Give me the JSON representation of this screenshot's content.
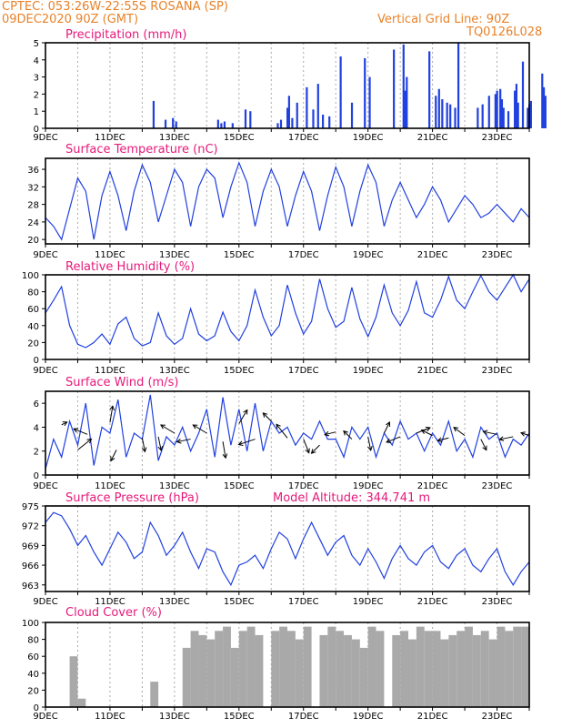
{
  "header": {
    "line1": "CPTEC:  053:26W-22:55S  ROSANA (SP)",
    "line2": "09DEC2020 90Z (GMT)",
    "grid_note": "Vertical Grid Line: 90Z",
    "run_code": "TQ0126L028"
  },
  "colors": {
    "header": "#e8822a",
    "panel_title": "#e6197a",
    "series": "#2040e0",
    "cloud": "#a9a9a9",
    "grid": "#aaaaaa",
    "arrow": "#000000"
  },
  "chart_data": [
    {
      "id": "precip",
      "type": "bar",
      "title": "Precipitation (mm/h)",
      "ylim": [
        0,
        5
      ],
      "yticks": [
        "0",
        "1",
        "2",
        "3",
        "4",
        "5"
      ],
      "xlabels": [
        "9DEC",
        "11DEC",
        "13DEC",
        "15DEC",
        "17DEC",
        "19DEC",
        "21DEC",
        "23DEC"
      ],
      "grid": true,
      "x_days": [
        3.35,
        3.72,
        3.95,
        4.05,
        5.35,
        5.45,
        5.55,
        5.8,
        6.2,
        6.35,
        7.2,
        7.3,
        7.5,
        7.55,
        7.65,
        7.8,
        8.1,
        8.3,
        8.45,
        8.6,
        8.8,
        9.15,
        9.5,
        9.9,
        10.05,
        10.8,
        11.1,
        11.15,
        11.2,
        11.9,
        12.1,
        12.2,
        12.3,
        12.45,
        12.55,
        12.7,
        12.8,
        13.4,
        13.55,
        13.75,
        13.95,
        14.0,
        14.1,
        14.15,
        14.2,
        14.35,
        14.55,
        14.6,
        14.65,
        14.8,
        14.95,
        15.0,
        15.05,
        15.4,
        15.45,
        15.5
      ],
      "values": [
        1.6,
        0.5,
        0.6,
        0.4,
        0.5,
        0.3,
        0.4,
        0.3,
        1.1,
        1.0,
        0.3,
        0.5,
        1.2,
        1.9,
        0.6,
        1.5,
        2.4,
        1.1,
        2.6,
        0.8,
        0.7,
        4.2,
        1.5,
        4.1,
        3.0,
        4.6,
        4.9,
        2.2,
        3.0,
        4.5,
        1.9,
        2.3,
        1.7,
        1.5,
        1.4,
        1.2,
        5.0,
        1.2,
        1.4,
        1.9,
        2.0,
        2.2,
        2.3,
        1.7,
        1.2,
        1.0,
        2.2,
        2.6,
        1.5,
        3.9,
        1.2,
        1.4,
        1.6,
        3.2,
        2.4,
        1.9
      ]
    },
    {
      "id": "temp",
      "type": "line",
      "title": "Surface Temperature (nC)",
      "ylim": [
        19,
        38.5
      ],
      "yticks": [
        "20",
        "24",
        "28",
        "32",
        "36"
      ],
      "xlabels": [
        "9DEC",
        "11DEC",
        "13DEC",
        "15DEC",
        "17DEC",
        "19DEC",
        "21DEC",
        "23DEC"
      ],
      "grid": true,
      "x_days": [
        0,
        0.25,
        0.5,
        0.75,
        1.0,
        1.25,
        1.5,
        1.75,
        2.0,
        2.25,
        2.5,
        2.75,
        3.0,
        3.25,
        3.5,
        3.75,
        4.0,
        4.25,
        4.5,
        4.75,
        5.0,
        5.25,
        5.5,
        5.75,
        6.0,
        6.25,
        6.5,
        6.75,
        7.0,
        7.25,
        7.5,
        7.75,
        8.0,
        8.25,
        8.5,
        8.75,
        9.0,
        9.25,
        9.5,
        9.75,
        10.0,
        10.25,
        10.5,
        10.75,
        11.0,
        11.25,
        11.5,
        11.75,
        12.0,
        12.25,
        12.5,
        12.75,
        13.0,
        13.25,
        13.5,
        13.75,
        14.0,
        14.25,
        14.5,
        14.75,
        15.0
      ],
      "values": [
        25,
        23,
        20,
        27,
        34,
        31,
        20,
        30,
        35.5,
        30,
        22,
        31,
        37,
        33,
        24,
        30,
        36,
        33,
        23,
        32,
        36,
        34,
        25,
        32,
        37.5,
        33,
        23,
        31,
        36,
        32,
        23,
        30,
        35.5,
        31,
        22,
        30,
        36.5,
        32,
        23,
        31,
        37,
        33,
        23,
        29,
        33,
        29,
        25,
        28,
        32,
        29,
        24,
        27,
        30,
        28,
        25,
        26,
        28,
        26,
        24,
        27,
        25
      ]
    },
    {
      "id": "rh",
      "type": "line",
      "title": "Relative Humidity (%)",
      "ylim": [
        0,
        100
      ],
      "yticks": [
        "0",
        "20",
        "40",
        "60",
        "80",
        "100"
      ],
      "xlabels": [
        "9DEC",
        "11DEC",
        "13DEC",
        "15DEC",
        "17DEC",
        "19DEC",
        "21DEC",
        "23DEC"
      ],
      "grid": true,
      "x_days": [
        0,
        0.25,
        0.5,
        0.75,
        1.0,
        1.25,
        1.5,
        1.75,
        2.0,
        2.25,
        2.5,
        2.75,
        3.0,
        3.25,
        3.5,
        3.75,
        4.0,
        4.25,
        4.5,
        4.75,
        5.0,
        5.25,
        5.5,
        5.75,
        6.0,
        6.25,
        6.5,
        6.75,
        7.0,
        7.25,
        7.5,
        7.75,
        8.0,
        8.25,
        8.5,
        8.75,
        9.0,
        9.25,
        9.5,
        9.75,
        10.0,
        10.25,
        10.5,
        10.75,
        11.0,
        11.25,
        11.5,
        11.75,
        12.0,
        12.25,
        12.5,
        12.75,
        13.0,
        13.25,
        13.5,
        13.75,
        14.0,
        14.25,
        14.5,
        14.75,
        15.0
      ],
      "values": [
        55,
        70,
        86,
        40,
        18,
        14,
        20,
        30,
        18,
        42,
        50,
        25,
        16,
        20,
        55,
        28,
        18,
        25,
        60,
        30,
        22,
        28,
        56,
        33,
        22,
        40,
        82,
        50,
        28,
        40,
        88,
        55,
        30,
        45,
        95,
        60,
        38,
        45,
        85,
        48,
        27,
        50,
        88,
        55,
        40,
        58,
        92,
        55,
        50,
        70,
        98,
        70,
        60,
        80,
        99,
        80,
        70,
        85,
        100,
        80,
        95
      ]
    },
    {
      "id": "wind",
      "type": "line",
      "title": "Surface Wind (m/s)",
      "ylim": [
        0,
        7
      ],
      "yticks": [
        "0",
        "2",
        "4",
        "6"
      ],
      "xlabels": [
        "9DEC",
        "11DEC",
        "13DEC",
        "15DEC",
        "17DEC",
        "19DEC",
        "21DEC",
        "23DEC"
      ],
      "grid": true,
      "x_days": [
        0,
        0.25,
        0.5,
        0.75,
        1.0,
        1.25,
        1.5,
        1.75,
        2.0,
        2.25,
        2.5,
        2.75,
        3.0,
        3.25,
        3.5,
        3.75,
        4.0,
        4.25,
        4.5,
        4.75,
        5.0,
        5.25,
        5.5,
        5.75,
        6.0,
        6.25,
        6.5,
        6.75,
        7.0,
        7.25,
        7.5,
        7.75,
        8.0,
        8.25,
        8.5,
        8.75,
        9.0,
        9.25,
        9.5,
        9.75,
        10.0,
        10.25,
        10.5,
        10.75,
        11.0,
        11.25,
        11.5,
        11.75,
        12.0,
        12.25,
        12.5,
        12.75,
        13.0,
        13.25,
        13.5,
        13.75,
        14.0,
        14.25,
        14.5,
        14.75,
        15.0
      ],
      "values": [
        0.5,
        3.0,
        1.5,
        4.5,
        2.5,
        6.0,
        0.8,
        4.0,
        3.5,
        6.3,
        1.5,
        3.5,
        3.0,
        6.7,
        1.2,
        3.2,
        2.5,
        4.0,
        2.0,
        3.5,
        5.5,
        1.5,
        6.5,
        2.5,
        5.5,
        2.0,
        6.0,
        2.0,
        4.5,
        3.5,
        4.0,
        2.5,
        3.5,
        3.0,
        4.5,
        3.0,
        3.0,
        1.5,
        4.0,
        3.0,
        4.0,
        1.5,
        3.5,
        2.5,
        4.5,
        3.0,
        3.5,
        2.0,
        3.5,
        2.5,
        4.5,
        2.0,
        3.0,
        1.5,
        4.0,
        3.0,
        3.5,
        1.5,
        3.0,
        2.5,
        3.5
      ],
      "vectors": [
        [
          0.5,
          4.2,
          0.2,
          0.1
        ],
        [
          1.0,
          2.1,
          0.5,
          0.4
        ],
        [
          1.3,
          3.4,
          -0.5,
          0.2
        ],
        [
          2.0,
          4.4,
          0.1,
          0.6
        ],
        [
          2.2,
          2.1,
          -0.2,
          -0.4
        ],
        [
          3.0,
          3.1,
          0.1,
          -0.5
        ],
        [
          3.5,
          3.2,
          0.1,
          -0.5
        ],
        [
          4.0,
          3.5,
          -0.5,
          0.3
        ],
        [
          4.5,
          3.0,
          -0.5,
          -0.1
        ],
        [
          5.0,
          3.5,
          -0.5,
          0.3
        ],
        [
          5.5,
          2.8,
          0.1,
          -0.6
        ],
        [
          6.0,
          4.3,
          0.3,
          0.5
        ],
        [
          6.5,
          3.0,
          -0.6,
          -0.2
        ],
        [
          7.0,
          4.5,
          -0.3,
          0.3
        ],
        [
          7.5,
          3.1,
          -0.4,
          0.5
        ],
        [
          8.0,
          3.0,
          0.2,
          -0.5
        ],
        [
          8.5,
          2.5,
          -0.3,
          -0.3
        ],
        [
          9.0,
          3.6,
          -0.4,
          -0.1
        ],
        [
          9.5,
          3.0,
          -0.3,
          0.3
        ],
        [
          10.0,
          3.2,
          0.1,
          -0.5
        ],
        [
          10.5,
          3.5,
          0.2,
          0.4
        ],
        [
          11.0,
          3.2,
          -0.5,
          -0.2
        ],
        [
          11.5,
          3.5,
          0.5,
          0.2
        ],
        [
          12.0,
          3.3,
          -0.4,
          0.2
        ],
        [
          12.5,
          3.1,
          -0.4,
          -0.1
        ],
        [
          13.0,
          3.3,
          -0.4,
          0.3
        ],
        [
          13.5,
          3.0,
          0.2,
          -0.4
        ],
        [
          14.0,
          3.4,
          -0.5,
          0.1
        ],
        [
          14.5,
          3.2,
          -0.5,
          -0.1
        ],
        [
          15.0,
          3.3,
          -0.3,
          0.1
        ]
      ]
    },
    {
      "id": "pres",
      "type": "line",
      "title": "Surface Pressure (hPa)",
      "annotation": "Model Altitude: 344.741 m",
      "ylim": [
        962,
        975
      ],
      "yticks": [
        "963",
        "966",
        "969",
        "972",
        "975"
      ],
      "xlabels": [
        "9DEC",
        "11DEC",
        "13DEC",
        "15DEC",
        "17DEC",
        "19DEC",
        "21DEC",
        "23DEC"
      ],
      "grid": true,
      "x_days": [
        0,
        0.25,
        0.5,
        0.75,
        1.0,
        1.25,
        1.5,
        1.75,
        2.0,
        2.25,
        2.5,
        2.75,
        3.0,
        3.25,
        3.5,
        3.75,
        4.0,
        4.25,
        4.5,
        4.75,
        5.0,
        5.25,
        5.5,
        5.75,
        6.0,
        6.25,
        6.5,
        6.75,
        7.0,
        7.25,
        7.5,
        7.75,
        8.0,
        8.25,
        8.5,
        8.75,
        9.0,
        9.25,
        9.5,
        9.75,
        10.0,
        10.25,
        10.5,
        10.75,
        11.0,
        11.25,
        11.5,
        11.75,
        12.0,
        12.25,
        12.5,
        12.75,
        13.0,
        13.25,
        13.5,
        13.75,
        14.0,
        14.25,
        14.5,
        14.75,
        15.0
      ],
      "values": [
        972.5,
        974.0,
        973.5,
        971.5,
        969.0,
        970.5,
        968.0,
        966.0,
        968.5,
        971.0,
        969.5,
        967.0,
        968.0,
        972.5,
        970.5,
        967.5,
        969.0,
        971.0,
        968.0,
        965.5,
        968.5,
        968.0,
        965.0,
        963.0,
        966.0,
        966.5,
        967.5,
        965.5,
        968.5,
        971.0,
        970.0,
        967.0,
        970.0,
        972.5,
        970.0,
        967.5,
        969.5,
        970.5,
        967.5,
        966.0,
        968.5,
        966.5,
        964.0,
        967.0,
        969.0,
        967.0,
        966.0,
        968.0,
        969.0,
        966.5,
        965.5,
        967.5,
        968.5,
        966.0,
        965.0,
        967.0,
        968.5,
        965.0,
        963.0,
        965.0,
        966.5
      ]
    },
    {
      "id": "cloud",
      "type": "bar",
      "title": "Cloud Cover (%)",
      "ylim": [
        0,
        100
      ],
      "yticks": [
        "0",
        "20",
        "40",
        "60",
        "80",
        "100"
      ],
      "xlabels": [
        "9DEC",
        "11DEC",
        "13DEC",
        "15DEC",
        "17DEC",
        "19DEC",
        "21DEC",
        "23DEC"
      ],
      "grid": true,
      "x_days": [
        0,
        0.25,
        0.5,
        0.75,
        1.0,
        1.25,
        1.5,
        1.75,
        2.0,
        2.25,
        2.5,
        2.75,
        3.0,
        3.25,
        3.5,
        3.75,
        4.0,
        4.25,
        4.5,
        4.75,
        5.0,
        5.25,
        5.5,
        5.75,
        6.0,
        6.25,
        6.5,
        6.75,
        7.0,
        7.25,
        7.5,
        7.75,
        8.0,
        8.25,
        8.5,
        8.75,
        9.0,
        9.25,
        9.5,
        9.75,
        10.0,
        10.25,
        10.5,
        10.75,
        11.0,
        11.25,
        11.5,
        11.75,
        12.0,
        12.25,
        12.5,
        12.75,
        13.0,
        13.25,
        13.5,
        13.75,
        14.0,
        14.25,
        14.5,
        14.75,
        15.0
      ],
      "values": [
        0,
        0,
        0,
        60,
        10,
        0,
        0,
        0,
        0,
        0,
        0,
        0,
        0,
        30,
        0,
        0,
        0,
        70,
        90,
        85,
        80,
        90,
        95,
        70,
        90,
        95,
        85,
        0,
        90,
        95,
        90,
        80,
        95,
        0,
        85,
        95,
        90,
        85,
        80,
        70,
        95,
        90,
        0,
        85,
        90,
        80,
        95,
        90,
        90,
        80,
        85,
        90,
        95,
        85,
        90,
        80,
        95,
        90,
        95,
        95,
        95
      ]
    }
  ]
}
